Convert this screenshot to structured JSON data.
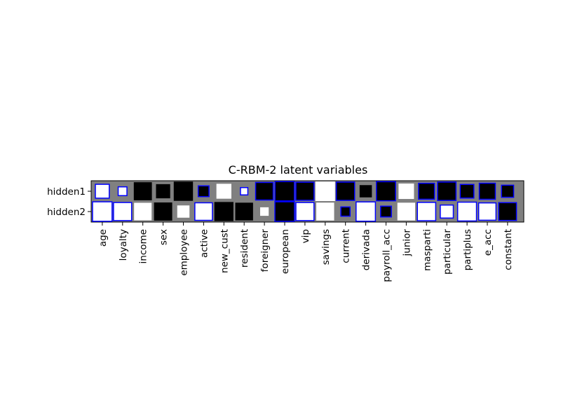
{
  "chart_data": {
    "type": "heatmap",
    "style": "hinton",
    "title": "C-RBM-2 latent variables",
    "rows": [
      "hidden1",
      "hidden2"
    ],
    "columns": [
      "age",
      "loyalty",
      "income",
      "sex",
      "employee",
      "active",
      "new_cust",
      "resident",
      "foreigner",
      "european",
      "vip",
      "savings",
      "current",
      "derivada",
      "payroll_acc",
      "junior",
      "masparti",
      "particular",
      "partiplus",
      "e_acc",
      "constant"
    ],
    "values": [
      [
        0.5,
        0.2,
        -0.85,
        -0.52,
        -0.96,
        -0.3,
        0.58,
        0.14,
        -0.8,
        -0.97,
        -0.85,
        1.0,
        -0.87,
        -0.39,
        -0.95,
        0.62,
        -0.66,
        -0.88,
        -0.48,
        -0.67,
        -0.38
      ],
      [
        0.99,
        0.85,
        0.8,
        -0.86,
        0.39,
        0.8,
        -0.95,
        -0.82,
        0.19,
        -0.99,
        0.85,
        0.83,
        -0.22,
        0.97,
        -0.3,
        0.82,
        0.87,
        0.44,
        0.92,
        0.78,
        -0.82
      ]
    ],
    "outlined": [
      [
        true,
        true,
        false,
        false,
        false,
        true,
        false,
        true,
        true,
        true,
        true,
        false,
        true,
        false,
        true,
        false,
        true,
        true,
        true,
        true,
        true
      ],
      [
        true,
        true,
        false,
        false,
        false,
        true,
        false,
        false,
        false,
        true,
        true,
        false,
        true,
        true,
        true,
        false,
        true,
        true,
        true,
        true,
        true
      ]
    ],
    "colors": {
      "positive": "#ffffff",
      "negative": "#000000",
      "background": "#808080",
      "outline": "#0000ff"
    }
  }
}
